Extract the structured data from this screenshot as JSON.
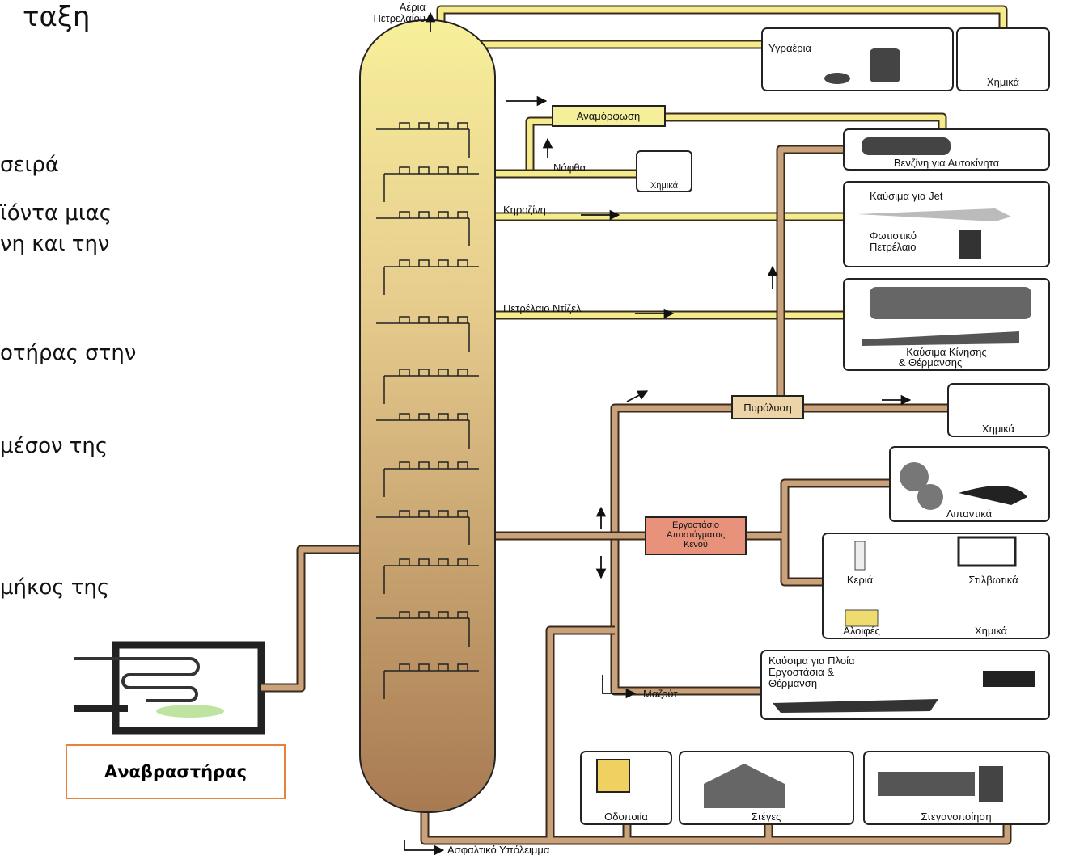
{
  "slide": {
    "title_fragment": "ταξη",
    "lines": [
      "σειρά",
      "ϊόντα μιας",
      "νη και την",
      "οτήρας στην",
      "μέσον της",
      "μήκος της"
    ],
    "reboiler": "Αναβραστήρας"
  },
  "diagram": {
    "gas_outlet": [
      "Αέρια",
      "Πετρελαίου"
    ],
    "lpg": "Υγραέρια",
    "chemicals": [
      "Χημικά",
      "Χημικά",
      "Χημικά",
      "Χημικά"
    ],
    "reforming": "Αναμόρφωση",
    "naphtha": "Νάφθα",
    "gasoline": "Βενζίνη για Αυτοκίνητα",
    "kerosene": "Κηροζίνη",
    "jet_fuel": "Καύσιμα για Jet",
    "lamp_oil": [
      "Φωτιστικό",
      "Πετρέλαιο"
    ],
    "diesel": "Πετρέλαιο Ντίζελ",
    "heating_fuel": [
      "Καύσιμα Κίνησης",
      "& Θέρμανσης"
    ],
    "cracking": "Πυρόλυση",
    "lubricants": "Λιπαντικά",
    "vacuum_unit": [
      "Εργοστάσιο",
      "Αποστάγματος",
      "Κενού"
    ],
    "candles": "Κεριά",
    "polishes": "Στιλβωτικά",
    "ointments": "Αλοιφές",
    "wax_chemicals": "Χημικά",
    "marine_fuel": [
      "Καύσιμα για Πλοία",
      "Εργοστάσια &",
      "Θέρμανση"
    ],
    "fuel_oil": "Μαζούτ",
    "road_paving": "Οδοποιία",
    "roofing": "Στέγες",
    "waterproofing": "Στεγανοποίηση",
    "asphalt_residue": "Ασφαλτικό Υπόλειμμα"
  }
}
